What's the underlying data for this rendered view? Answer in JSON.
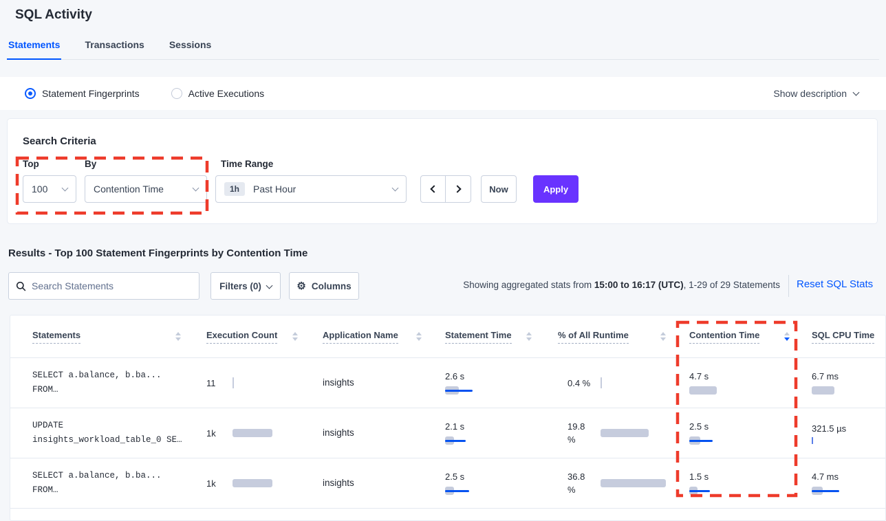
{
  "page": {
    "title": "SQL Activity"
  },
  "tabs": [
    {
      "label": "Statements"
    },
    {
      "label": "Transactions"
    },
    {
      "label": "Sessions"
    }
  ],
  "view_toggle": {
    "option1": "Statement Fingerprints",
    "option2": "Active Executions",
    "show_description": "Show description"
  },
  "search_criteria": {
    "title": "Search Criteria",
    "top_label": "Top",
    "top_value": "100",
    "by_label": "By",
    "by_value": "Contention Time",
    "time_range_label": "Time Range",
    "time_range_badge": "1h",
    "time_range_value": "Past Hour",
    "now_label": "Now",
    "apply_label": "Apply"
  },
  "results": {
    "title": "Results - Top 100 Statement Fingerprints by Contention Time",
    "search_placeholder": "Search Statements",
    "filters_label": "Filters (0)",
    "columns_label": "Columns",
    "stats_prefix": "Showing aggregated stats from ",
    "stats_range": "15:00 to 16:17 (UTC)",
    "stats_suffix": ", 1-29 of 29 Statements",
    "reset_link": "Reset SQL Stats"
  },
  "table": {
    "headers": [
      "Statements",
      "Execution Count",
      "Application Name",
      "Statement Time",
      "% of All Runtime",
      "Contention Time",
      "SQL CPU Time"
    ],
    "sorted_column": "Contention Time",
    "sort_direction": "desc",
    "rows": [
      {
        "statement_line1": "SELECT a.balance, b.ba...",
        "statement_line2": "FROM…",
        "execution_count": "11",
        "application_name": "insights",
        "statement_time": "2.6 s",
        "runtime_pct": "0.4 %",
        "contention_time": "4.7 s",
        "sql_cpu_time": "6.7 ms",
        "bars": {
          "execution": {
            "max": 1.5
          },
          "statement_time": {
            "max": 20,
            "mean": 40
          },
          "runtime": {
            "max": 1.5
          },
          "contention_time": {
            "max": 40,
            "mean": 0
          },
          "sql_cpu_time": {
            "max": 33,
            "mean": 0
          }
        }
      },
      {
        "statement_line1": "UPDATE",
        "statement_line2": "insights_workload_table_0 SE…",
        "execution_count": "1k",
        "application_name": "insights",
        "statement_time": "2.1 s",
        "runtime_pct": "19.8 %",
        "contention_time": "2.5 s",
        "sql_cpu_time": "321.5 µs",
        "bars": {
          "execution": {
            "max": 58
          },
          "statement_time": {
            "max": 13,
            "mean": 30
          },
          "runtime": {
            "max": 70
          },
          "contention_time": {
            "max": 16,
            "mean": 34
          },
          "sql_cpu_time": {
            "max": 0,
            "mean": 2
          }
        }
      },
      {
        "statement_line1": "SELECT a.balance, b.ba...",
        "statement_line2": "FROM…",
        "execution_count": "1k",
        "application_name": "insights",
        "statement_time": "2.5 s",
        "runtime_pct": "36.8 %",
        "contention_time": "1.5 s",
        "sql_cpu_time": "4.7 ms",
        "bars": {
          "execution": {
            "max": 58
          },
          "statement_time": {
            "max": 13,
            "mean": 35
          },
          "runtime": {
            "max": 95
          },
          "contention_time": {
            "max": 12,
            "mean": 30
          },
          "sql_cpu_time": {
            "max": 16,
            "mean": 40
          }
        }
      }
    ]
  },
  "colors": {
    "accent_blue": "#0055FF",
    "primary_purple": "#6933FF",
    "annotation_red": "#EE3B2B",
    "bar_grey": "#C6CCDD",
    "bar_blue": "#0552F0"
  }
}
